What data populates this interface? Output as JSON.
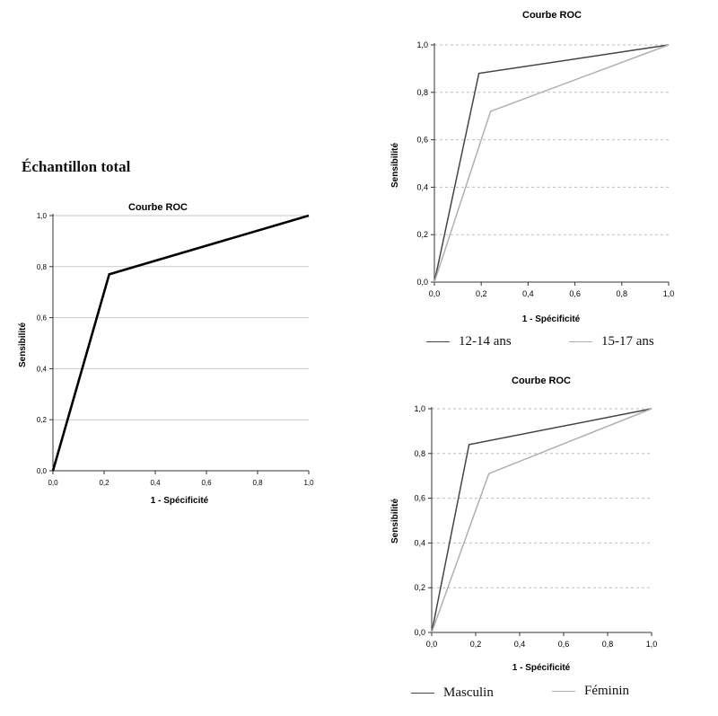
{
  "heading": "Échantillon total",
  "charts": [
    {
      "title": "Courbe ROC",
      "xlabel": "1 - Spécificité",
      "ylabel": "Sensibilité",
      "ticks": [
        "0,0",
        "0,2",
        "0,4",
        "0,6",
        "0,8",
        "1,0"
      ],
      "legend": []
    },
    {
      "title": "Courbe ROC",
      "xlabel": "1 - Spécificité",
      "ylabel": "Sensibilité",
      "ticks": [
        "0,0",
        "0,2",
        "0,4",
        "0,6",
        "0,8",
        "1,0"
      ],
      "legend": [
        "12-14 ans",
        "15-17 ans"
      ]
    },
    {
      "title": "Courbe ROC",
      "xlabel": "1 - Spécificité",
      "ylabel": "Sensibilité",
      "ticks": [
        "0,0",
        "0,2",
        "0,4",
        "0,6",
        "0,8",
        "1,0"
      ],
      "legend": [
        "Masculin",
        "Féminin"
      ]
    }
  ],
  "chart_data": [
    {
      "type": "line",
      "title": "Courbe ROC",
      "xlabel": "1 - Spécificité",
      "ylabel": "Sensibilité",
      "xlim": [
        0,
        1
      ],
      "ylim": [
        0,
        1
      ],
      "grid": "horizontal",
      "series": [
        {
          "color": "#000000",
          "x": [
            0,
            0.22,
            1
          ],
          "y": [
            0,
            0.77,
            1
          ]
        }
      ]
    },
    {
      "type": "line",
      "title": "Courbe ROC",
      "xlabel": "1 - Spécificité",
      "ylabel": "Sensibilité",
      "xlim": [
        0,
        1
      ],
      "ylim": [
        0,
        1
      ],
      "grid": "horizontal dashed",
      "legend_position": "bottom",
      "series": [
        {
          "name": "12-14 ans",
          "color": "#444444",
          "x": [
            0,
            0.19,
            1
          ],
          "y": [
            0,
            0.88,
            1
          ]
        },
        {
          "name": "15-17 ans",
          "color": "#b0b0b0",
          "x": [
            0,
            0.24,
            1
          ],
          "y": [
            0,
            0.72,
            1
          ]
        }
      ]
    },
    {
      "type": "line",
      "title": "Courbe ROC",
      "xlabel": "1 - Spécificité",
      "ylabel": "Sensibilité",
      "xlim": [
        0,
        1
      ],
      "ylim": [
        0,
        1
      ],
      "grid": "horizontal dashed",
      "legend_position": "bottom",
      "series": [
        {
          "name": "Masculin",
          "color": "#444444",
          "x": [
            0,
            0.17,
            1
          ],
          "y": [
            0,
            0.84,
            1
          ]
        },
        {
          "name": "Féminin",
          "color": "#b0b0b0",
          "x": [
            0,
            0.26,
            1
          ],
          "y": [
            0,
            0.71,
            1
          ]
        }
      ]
    }
  ]
}
